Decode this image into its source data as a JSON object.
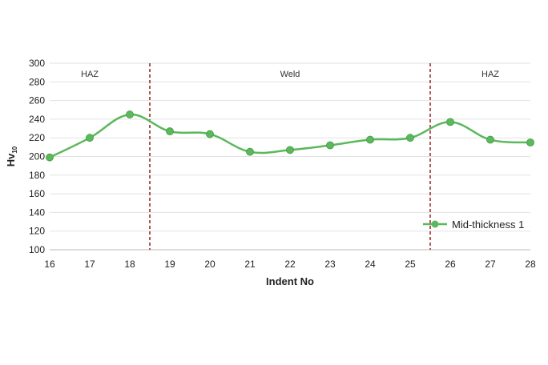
{
  "chart_data": {
    "type": "line",
    "xlabel": "Indent No",
    "ylabel": "Hv",
    "ylabel_sub": "10",
    "x": [
      16,
      17,
      18,
      19,
      20,
      21,
      22,
      23,
      24,
      25,
      26,
      27,
      28
    ],
    "xlim": [
      16,
      28
    ],
    "ylim": [
      100,
      300
    ],
    "yticks": [
      100,
      120,
      140,
      160,
      180,
      200,
      220,
      240,
      260,
      280,
      300
    ],
    "grid": true,
    "series": [
      {
        "name": "Mid-thickness 1",
        "color": "#5cb85c",
        "values": [
          199,
          220,
          245,
          227,
          224,
          205,
          207,
          212,
          218,
          220,
          237,
          218,
          215
        ]
      }
    ],
    "legend_position": "bottom-right",
    "boundaries": {
      "x": [
        18.5,
        25.5
      ],
      "color": "#9b2c2c"
    },
    "regions": [
      {
        "label": "HAZ",
        "x": 17
      },
      {
        "label": "Weld",
        "x": 22
      },
      {
        "label": "HAZ",
        "x": 27
      }
    ]
  }
}
